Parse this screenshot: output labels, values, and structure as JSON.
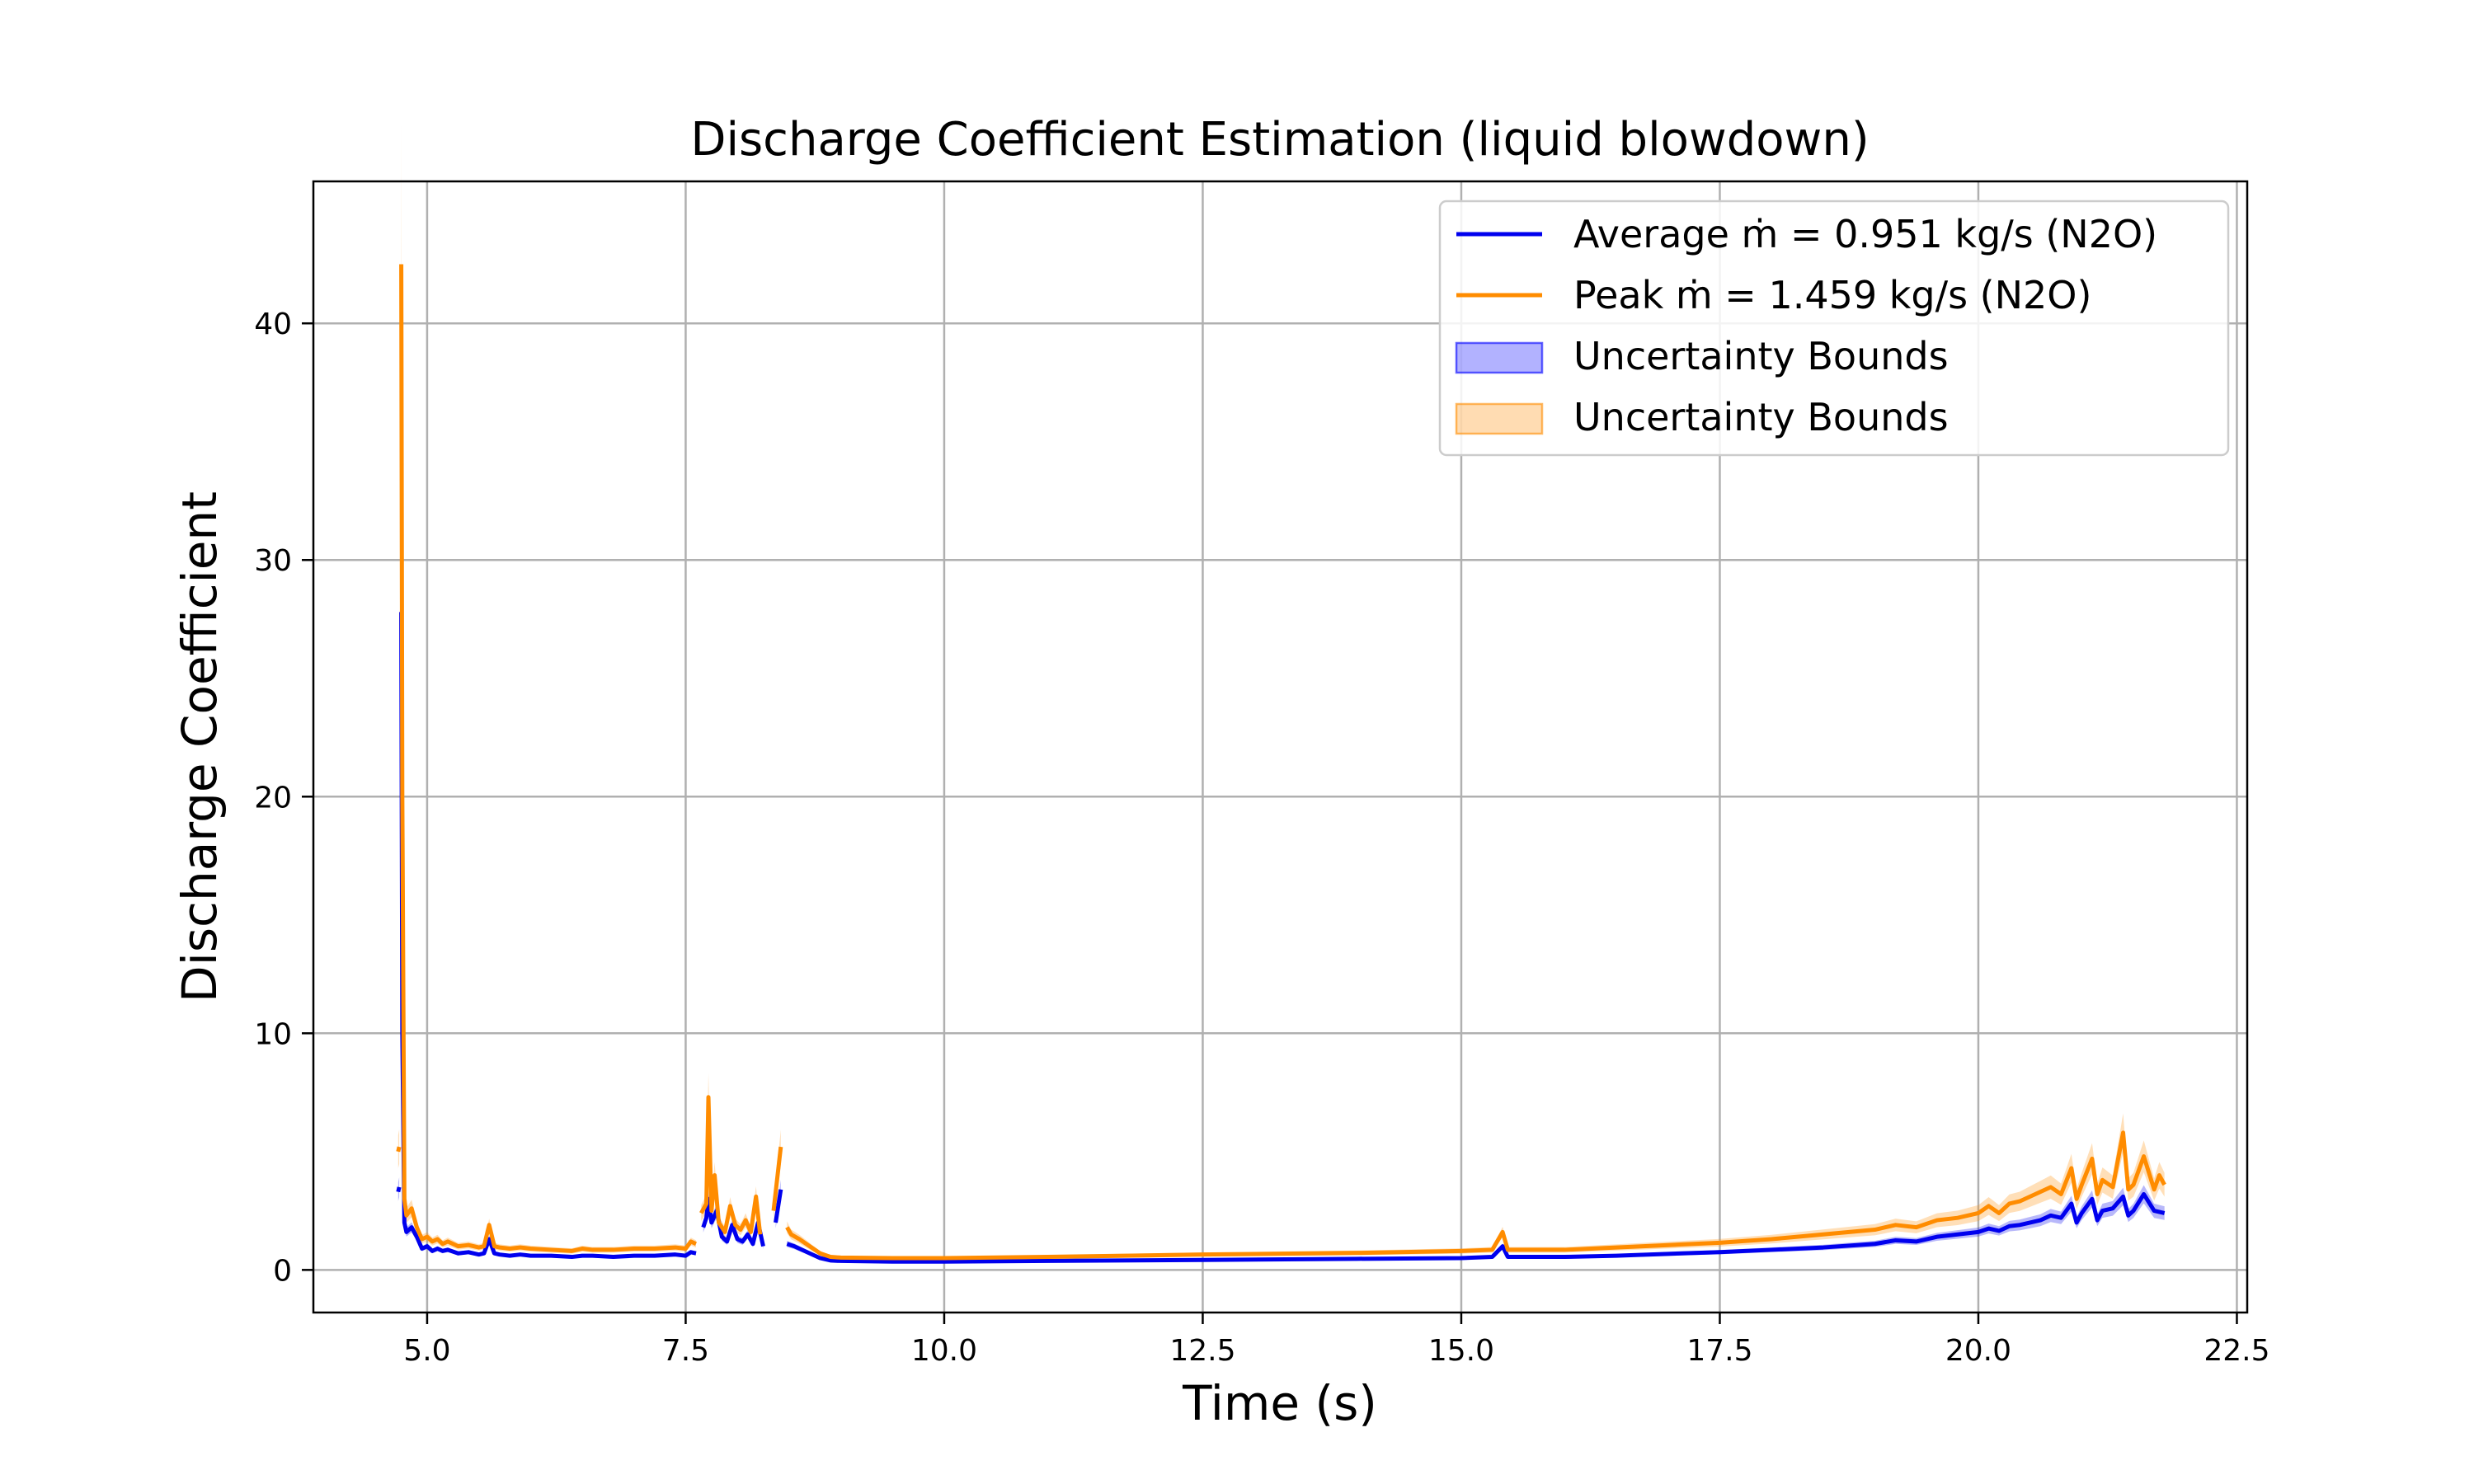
{
  "chart_data": {
    "type": "line",
    "title": "Discharge Coefficient Estimation (liquid blowdown)",
    "xlabel": "Time (s)",
    "ylabel": "Discharge Coefficient",
    "xlim": [
      3.9,
      22.6
    ],
    "ylim": [
      -1.8,
      46
    ],
    "xticks": [
      5.0,
      7.5,
      10.0,
      12.5,
      15.0,
      17.5,
      20.0,
      22.5
    ],
    "xtick_labels": [
      "5.0",
      "7.5",
      "10.0",
      "12.5",
      "15.0",
      "17.5",
      "20.0",
      "22.5"
    ],
    "yticks": [
      0,
      10,
      20,
      30,
      40
    ],
    "ytick_labels": [
      "0",
      "10",
      "20",
      "30",
      "40"
    ],
    "grid": true,
    "legend_position": "top-right",
    "legend": [
      {
        "label": "Average ṁ = 0.951 kg/s (N2O)",
        "kind": "line",
        "color": "#0000ee"
      },
      {
        "label": "Peak ṁ = 1.459 kg/s (N2O)",
        "kind": "line",
        "color": "#ff8c00"
      },
      {
        "label": "Uncertainty Bounds",
        "kind": "patch",
        "color": "#0000ff"
      },
      {
        "label": "Uncertainty Bounds",
        "kind": "patch",
        "color": "#ff8c00"
      }
    ],
    "series": [
      {
        "name": "Average ṁ = 0.951 kg/s (N2O)",
        "color": "#0000ee",
        "segments": [
          [
            [
              4.72,
              3.3
            ],
            [
              4.73,
              3.5
            ]
          ],
          [
            [
              4.75,
              27.8
            ],
            [
              4.76,
              10.0
            ],
            [
              4.78,
              2.0
            ],
            [
              4.8,
              1.6
            ],
            [
              4.85,
              1.8
            ],
            [
              4.9,
              1.4
            ],
            [
              4.95,
              0.9
            ],
            [
              5.0,
              1.0
            ],
            [
              5.05,
              0.8
            ],
            [
              5.1,
              0.9
            ],
            [
              5.15,
              0.8
            ],
            [
              5.2,
              0.85
            ],
            [
              5.3,
              0.7
            ],
            [
              5.4,
              0.75
            ],
            [
              5.5,
              0.65
            ],
            [
              5.55,
              0.7
            ],
            [
              5.6,
              1.3
            ],
            [
              5.65,
              0.7
            ],
            [
              5.7,
              0.65
            ],
            [
              5.8,
              0.6
            ],
            [
              5.9,
              0.65
            ],
            [
              6.0,
              0.6
            ],
            [
              6.2,
              0.6
            ],
            [
              6.4,
              0.55
            ],
            [
              6.5,
              0.6
            ],
            [
              6.6,
              0.6
            ],
            [
              6.8,
              0.55
            ],
            [
              7.0,
              0.6
            ],
            [
              7.2,
              0.6
            ],
            [
              7.4,
              0.65
            ],
            [
              7.5,
              0.6
            ],
            [
              7.55,
              0.75
            ],
            [
              7.6,
              0.7
            ]
          ],
          [
            [
              7.67,
              1.8
            ],
            [
              7.7,
              2.2
            ],
            [
              7.72,
              3.0
            ],
            [
              7.75,
              2.0
            ],
            [
              7.8,
              2.5
            ],
            [
              7.85,
              1.4
            ],
            [
              7.9,
              1.2
            ],
            [
              7.95,
              1.9
            ],
            [
              8.0,
              1.3
            ],
            [
              8.05,
              1.2
            ],
            [
              8.1,
              1.5
            ],
            [
              8.15,
              1.1
            ],
            [
              8.2,
              2.0
            ],
            [
              8.25,
              1.0
            ]
          ],
          [
            [
              8.37,
              2.0
            ],
            [
              8.42,
              3.4
            ]
          ],
          [
            [
              8.48,
              1.1
            ],
            [
              8.55,
              1.0
            ],
            [
              8.6,
              0.9
            ],
            [
              8.7,
              0.7
            ],
            [
              8.8,
              0.5
            ],
            [
              8.9,
              0.4
            ],
            [
              9.0,
              0.38
            ],
            [
              9.5,
              0.35
            ],
            [
              10.0,
              0.35
            ],
            [
              11.0,
              0.38
            ],
            [
              12.5,
              0.42
            ],
            [
              14.0,
              0.47
            ],
            [
              15.0,
              0.5
            ],
            [
              15.3,
              0.55
            ],
            [
              15.4,
              1.0
            ],
            [
              15.45,
              0.55
            ],
            [
              16.0,
              0.55
            ],
            [
              16.5,
              0.6
            ],
            [
              17.0,
              0.68
            ],
            [
              17.5,
              0.75
            ],
            [
              18.0,
              0.85
            ],
            [
              18.5,
              0.95
            ],
            [
              19.0,
              1.1
            ],
            [
              19.2,
              1.25
            ],
            [
              19.4,
              1.2
            ],
            [
              19.6,
              1.4
            ],
            [
              19.8,
              1.5
            ],
            [
              20.0,
              1.6
            ],
            [
              20.1,
              1.75
            ],
            [
              20.2,
              1.65
            ],
            [
              20.3,
              1.85
            ],
            [
              20.4,
              1.9
            ],
            [
              20.5,
              2.0
            ],
            [
              20.6,
              2.1
            ],
            [
              20.7,
              2.3
            ],
            [
              20.8,
              2.2
            ],
            [
              20.9,
              2.8
            ],
            [
              20.95,
              2.0
            ],
            [
              21.0,
              2.4
            ],
            [
              21.1,
              3.0
            ],
            [
              21.15,
              2.1
            ],
            [
              21.2,
              2.5
            ],
            [
              21.3,
              2.6
            ],
            [
              21.4,
              3.1
            ],
            [
              21.45,
              2.3
            ],
            [
              21.5,
              2.5
            ],
            [
              21.6,
              3.2
            ],
            [
              21.7,
              2.5
            ],
            [
              21.8,
              2.4
            ]
          ]
        ]
      },
      {
        "name": "Peak ṁ = 1.459 kg/s (N2O)",
        "color": "#ff8c00",
        "segments": [
          [
            [
              4.72,
              5.0
            ],
            [
              4.73,
              5.2
            ]
          ],
          [
            [
              4.75,
              42.5
            ],
            [
              4.76,
              20.0
            ],
            [
              4.78,
              3.0
            ],
            [
              4.8,
              2.3
            ],
            [
              4.85,
              2.6
            ],
            [
              4.9,
              1.8
            ],
            [
              4.95,
              1.3
            ],
            [
              5.0,
              1.4
            ],
            [
              5.05,
              1.2
            ],
            [
              5.1,
              1.3
            ],
            [
              5.15,
              1.1
            ],
            [
              5.2,
              1.2
            ],
            [
              5.3,
              1.0
            ],
            [
              5.4,
              1.05
            ],
            [
              5.5,
              0.95
            ],
            [
              5.55,
              1.0
            ],
            [
              5.6,
              1.9
            ],
            [
              5.65,
              1.0
            ],
            [
              5.7,
              0.95
            ],
            [
              5.8,
              0.9
            ],
            [
              5.9,
              0.95
            ],
            [
              6.0,
              0.9
            ],
            [
              6.2,
              0.85
            ],
            [
              6.4,
              0.8
            ],
            [
              6.5,
              0.9
            ],
            [
              6.6,
              0.85
            ],
            [
              6.8,
              0.85
            ],
            [
              7.0,
              0.9
            ],
            [
              7.2,
              0.9
            ],
            [
              7.4,
              0.95
            ],
            [
              7.5,
              0.9
            ],
            [
              7.55,
              1.2
            ],
            [
              7.6,
              1.1
            ]
          ],
          [
            [
              7.65,
              2.4
            ],
            [
              7.7,
              2.8
            ],
            [
              7.72,
              7.3
            ],
            [
              7.75,
              2.5
            ],
            [
              7.78,
              4.0
            ],
            [
              7.82,
              2.0
            ],
            [
              7.88,
              1.6
            ],
            [
              7.93,
              2.7
            ],
            [
              7.98,
              1.9
            ],
            [
              8.03,
              1.7
            ],
            [
              8.08,
              2.1
            ],
            [
              8.13,
              1.6
            ],
            [
              8.18,
              3.1
            ],
            [
              8.22,
              1.5
            ]
          ],
          [
            [
              8.35,
              2.5
            ],
            [
              8.42,
              5.2
            ]
          ],
          [
            [
              8.48,
              1.8
            ],
            [
              8.52,
              1.5
            ],
            [
              8.6,
              1.3
            ],
            [
              8.7,
              1.0
            ],
            [
              8.8,
              0.7
            ],
            [
              8.9,
              0.55
            ],
            [
              9.0,
              0.52
            ],
            [
              9.5,
              0.5
            ],
            [
              10.0,
              0.5
            ],
            [
              11.0,
              0.55
            ],
            [
              12.5,
              0.65
            ],
            [
              14.0,
              0.72
            ],
            [
              15.0,
              0.8
            ],
            [
              15.3,
              0.85
            ],
            [
              15.4,
              1.6
            ],
            [
              15.45,
              0.85
            ],
            [
              16.0,
              0.85
            ],
            [
              16.5,
              0.95
            ],
            [
              17.0,
              1.05
            ],
            [
              17.5,
              1.15
            ],
            [
              18.0,
              1.3
            ],
            [
              18.5,
              1.5
            ],
            [
              19.0,
              1.7
            ],
            [
              19.2,
              1.9
            ],
            [
              19.4,
              1.8
            ],
            [
              19.6,
              2.1
            ],
            [
              19.8,
              2.2
            ],
            [
              20.0,
              2.4
            ],
            [
              20.1,
              2.7
            ],
            [
              20.2,
              2.4
            ],
            [
              20.3,
              2.8
            ],
            [
              20.4,
              2.9
            ],
            [
              20.5,
              3.1
            ],
            [
              20.6,
              3.3
            ],
            [
              20.7,
              3.5
            ],
            [
              20.8,
              3.2
            ],
            [
              20.9,
              4.3
            ],
            [
              20.95,
              3.0
            ],
            [
              21.0,
              3.6
            ],
            [
              21.1,
              4.7
            ],
            [
              21.15,
              3.2
            ],
            [
              21.2,
              3.8
            ],
            [
              21.3,
              3.5
            ],
            [
              21.4,
              5.8
            ],
            [
              21.45,
              3.4
            ],
            [
              21.5,
              3.6
            ],
            [
              21.6,
              4.8
            ],
            [
              21.7,
              3.4
            ],
            [
              21.75,
              4.0
            ],
            [
              21.8,
              3.6
            ]
          ]
        ]
      }
    ]
  }
}
